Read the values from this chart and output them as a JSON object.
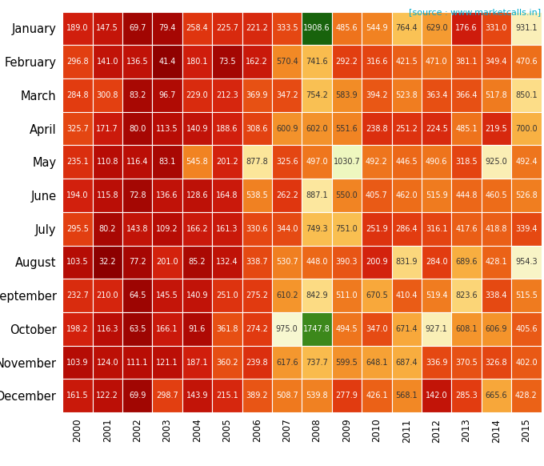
{
  "months": [
    "January",
    "February",
    "March",
    "April",
    "May",
    "June",
    "July",
    "August",
    "September",
    "October",
    "November",
    "December"
  ],
  "years": [
    "2000",
    "2001",
    "2002",
    "2003",
    "2004",
    "2005",
    "2006",
    "2007",
    "2008",
    "2009",
    "2010",
    "2011",
    "2012",
    "2013",
    "2014",
    "2015"
  ],
  "values": [
    [
      189.0,
      147.5,
      69.7,
      79.4,
      258.4,
      225.7,
      221.2,
      333.5,
      1908.6,
      485.6,
      544.9,
      764.4,
      629.0,
      176.6,
      331.0,
      931.1
    ],
    [
      296.8,
      141.0,
      136.5,
      41.4,
      180.1,
      73.5,
      162.2,
      570.4,
      741.6,
      292.2,
      316.6,
      421.5,
      471.0,
      381.1,
      349.4,
      470.6
    ],
    [
      284.8,
      300.8,
      83.2,
      96.7,
      229.0,
      212.3,
      369.9,
      347.2,
      754.2,
      583.9,
      394.2,
      523.8,
      363.4,
      366.4,
      517.8,
      850.1
    ],
    [
      325.7,
      171.7,
      80.0,
      113.5,
      140.9,
      188.6,
      308.6,
      600.9,
      602.0,
      551.6,
      238.8,
      251.2,
      224.5,
      485.1,
      219.5,
      700.0
    ],
    [
      235.1,
      110.8,
      116.4,
      83.1,
      545.8,
      201.2,
      877.8,
      325.6,
      497.0,
      1030.7,
      492.2,
      446.5,
      490.6,
      318.5,
      925.0,
      492.4
    ],
    [
      194.0,
      115.8,
      72.8,
      136.6,
      128.6,
      164.8,
      538.5,
      262.2,
      887.1,
      550.0,
      405.7,
      462.0,
      515.9,
      444.8,
      460.5,
      526.8
    ],
    [
      295.5,
      80.2,
      143.8,
      109.2,
      166.2,
      161.3,
      330.6,
      344.0,
      749.3,
      751.0,
      251.9,
      286.4,
      316.1,
      417.6,
      418.8,
      339.4
    ],
    [
      103.5,
      32.2,
      77.2,
      201.0,
      85.2,
      132.4,
      338.7,
      530.7,
      448.0,
      390.3,
      200.9,
      831.9,
      284.0,
      689.6,
      428.1,
      954.3
    ],
    [
      232.7,
      210.0,
      64.5,
      145.5,
      140.9,
      251.0,
      275.2,
      610.2,
      842.9,
      511.0,
      670.5,
      410.4,
      519.4,
      823.6,
      338.4,
      515.5
    ],
    [
      198.2,
      116.3,
      63.5,
      166.1,
      91.6,
      361.8,
      274.2,
      975.0,
      1747.8,
      494.5,
      347.0,
      671.4,
      927.1,
      608.1,
      606.9,
      405.6
    ],
    [
      103.9,
      124.0,
      111.1,
      121.1,
      187.1,
      360.2,
      239.8,
      617.6,
      737.7,
      599.5,
      648.1,
      687.4,
      336.9,
      370.5,
      326.8,
      402.0
    ],
    [
      161.5,
      122.2,
      69.9,
      298.7,
      143.9,
      215.1,
      389.2,
      508.7,
      539.8,
      277.9,
      426.1,
      568.1,
      142.0,
      285.3,
      665.6,
      428.2
    ]
  ],
  "source_text": "[source : www.marketcalls.in]",
  "source_color": "#00AACC",
  "background_color": "#FFFFFF",
  "low_value": 30,
  "high_value": 2000,
  "mid_value": 500,
  "font_size_cell": 7.0,
  "font_size_month": 10.5,
  "font_size_year": 8.5
}
